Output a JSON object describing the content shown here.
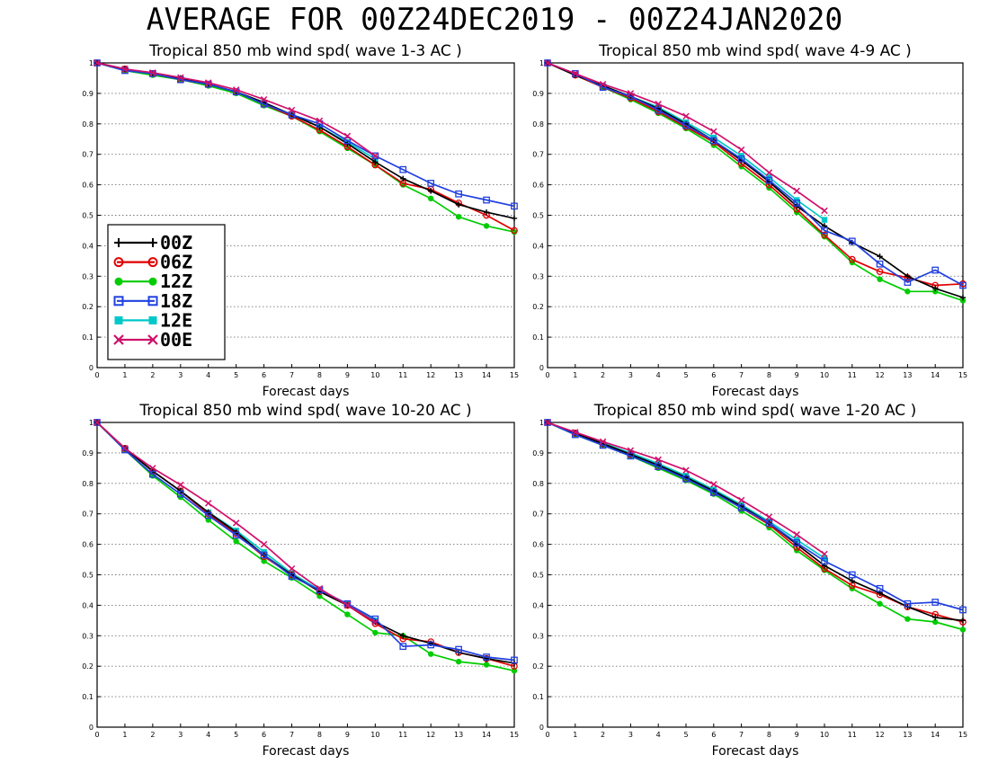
{
  "title": "AVERAGE FOR 00Z24DEC2019 - 00Z24JAN2020",
  "colors": {
    "00Z": "#000000",
    "06Z": "#e00000",
    "12Z": "#00cc00",
    "18Z": "#2040e0",
    "12E": "#00c8c8",
    "00E": "#d0106a"
  },
  "legend": {
    "placement": "left-middle of top-left panel",
    "items": [
      {
        "label": "00Z",
        "marker": "plus"
      },
      {
        "label": "06Z",
        "marker": "circle"
      },
      {
        "label": "12Z",
        "marker": "filled-circle"
      },
      {
        "label": "18Z",
        "marker": "square"
      },
      {
        "label": "12E",
        "marker": "filled-square"
      },
      {
        "label": "00E",
        "marker": "cross"
      }
    ]
  },
  "chart_data": [
    {
      "type": "line",
      "title": "Tropical 850 mb wind spd( wave 1-3 AC )",
      "xlabel": "Forecast days",
      "ylabel": "",
      "xlim": [
        0,
        15
      ],
      "ylim": [
        0,
        1
      ],
      "x_ticks": [
        "0",
        "1",
        "2",
        "3",
        "4",
        "5",
        "6",
        "7",
        "8",
        "9",
        "10",
        "11",
        "12",
        "13",
        "14",
        "15"
      ],
      "y_ticks": [
        "0",
        "0.1",
        "0.2",
        "0.3",
        "0.4",
        "0.5",
        "0.6",
        "0.7",
        "0.8",
        "0.9",
        "1"
      ],
      "grid": true,
      "series": [
        {
          "name": "00Z",
          "x": [
            0,
            1,
            2,
            3,
            4,
            5,
            6,
            7,
            8,
            9,
            10,
            11,
            12,
            13,
            14,
            15
          ],
          "values": [
            1,
            0.98,
            0.965,
            0.95,
            0.93,
            0.905,
            0.87,
            0.83,
            0.79,
            0.735,
            0.675,
            0.62,
            0.58,
            0.535,
            0.51,
            0.49
          ]
        },
        {
          "name": "06Z",
          "x": [
            0,
            1,
            2,
            3,
            4,
            5,
            6,
            7,
            8,
            9,
            10,
            11,
            12,
            13,
            14,
            15
          ],
          "values": [
            1,
            0.98,
            0.965,
            0.945,
            0.93,
            0.905,
            0.865,
            0.825,
            0.78,
            0.725,
            0.665,
            0.605,
            0.585,
            0.54,
            0.5,
            0.45
          ]
        },
        {
          "name": "12Z",
          "x": [
            0,
            1,
            2,
            3,
            4,
            5,
            6,
            7,
            8,
            9,
            10,
            11,
            12,
            13,
            14,
            15
          ],
          "values": [
            1,
            0.975,
            0.96,
            0.945,
            0.925,
            0.9,
            0.86,
            0.825,
            0.775,
            0.72,
            0.665,
            0.6,
            0.555,
            0.495,
            0.465,
            0.445
          ]
        },
        {
          "name": "18Z",
          "x": [
            0,
            1,
            2,
            3,
            4,
            5,
            6,
            7,
            8,
            9,
            10,
            11,
            12,
            13,
            14,
            15
          ],
          "values": [
            1,
            0.975,
            0.965,
            0.945,
            0.93,
            0.905,
            0.865,
            0.83,
            0.8,
            0.745,
            0.695,
            0.65,
            0.605,
            0.57,
            0.55,
            0.53
          ]
        },
        {
          "name": "12E",
          "x": [
            0,
            1,
            2,
            3,
            4,
            5,
            6,
            7,
            8,
            9,
            10
          ],
          "values": [
            1,
            0.978,
            0.965,
            0.948,
            0.93,
            0.905,
            0.87,
            0.83,
            0.79,
            0.74,
            0.685
          ]
        },
        {
          "name": "00E",
          "x": [
            0,
            1,
            2,
            3,
            4,
            5,
            6,
            7,
            8,
            9,
            10
          ],
          "values": [
            1,
            0.98,
            0.968,
            0.952,
            0.935,
            0.912,
            0.88,
            0.845,
            0.81,
            0.76,
            0.695
          ]
        }
      ]
    },
    {
      "type": "line",
      "title": "Tropical 850 mb wind spd( wave 4-9 AC )",
      "xlabel": "Forecast days",
      "ylabel": "",
      "xlim": [
        0,
        15
      ],
      "ylim": [
        0,
        1
      ],
      "x_ticks": [
        "0",
        "1",
        "2",
        "3",
        "4",
        "5",
        "6",
        "7",
        "8",
        "9",
        "10",
        "11",
        "12",
        "13",
        "14",
        "15"
      ],
      "y_ticks": [
        "0",
        "0.1",
        "0.2",
        "0.3",
        "0.4",
        "0.5",
        "0.6",
        "0.7",
        "0.8",
        "0.9",
        "1"
      ],
      "grid": true,
      "series": [
        {
          "name": "00Z",
          "x": [
            0,
            1,
            2,
            3,
            4,
            5,
            6,
            7,
            8,
            9,
            10,
            11,
            12,
            13,
            14,
            15
          ],
          "values": [
            1,
            0.96,
            0.925,
            0.89,
            0.85,
            0.8,
            0.745,
            0.68,
            0.61,
            0.53,
            0.465,
            0.41,
            0.365,
            0.3,
            0.26,
            0.23
          ]
        },
        {
          "name": "06Z",
          "x": [
            0,
            1,
            2,
            3,
            4,
            5,
            6,
            7,
            8,
            9,
            10,
            11,
            12,
            13,
            14,
            15
          ],
          "values": [
            1,
            0.96,
            0.92,
            0.885,
            0.84,
            0.79,
            0.74,
            0.67,
            0.6,
            0.52,
            0.435,
            0.355,
            0.315,
            0.295,
            0.27,
            0.275
          ]
        },
        {
          "name": "12Z",
          "x": [
            0,
            1,
            2,
            3,
            4,
            5,
            6,
            7,
            8,
            9,
            10,
            11,
            12,
            13,
            14,
            15
          ],
          "values": [
            1,
            0.96,
            0.92,
            0.88,
            0.835,
            0.785,
            0.73,
            0.66,
            0.59,
            0.51,
            0.43,
            0.345,
            0.29,
            0.25,
            0.25,
            0.22
          ]
        },
        {
          "name": "18Z",
          "x": [
            0,
            1,
            2,
            3,
            4,
            5,
            6,
            7,
            8,
            9,
            10,
            11,
            12,
            13,
            14,
            15
          ],
          "values": [
            1,
            0.965,
            0.92,
            0.89,
            0.845,
            0.795,
            0.745,
            0.685,
            0.615,
            0.54,
            0.45,
            0.415,
            0.34,
            0.28,
            0.32,
            0.27
          ]
        },
        {
          "name": "12E",
          "x": [
            0,
            1,
            2,
            3,
            4,
            5,
            6,
            7,
            8,
            9,
            10
          ],
          "values": [
            1,
            0.96,
            0.925,
            0.89,
            0.855,
            0.805,
            0.755,
            0.695,
            0.625,
            0.55,
            0.485
          ]
        },
        {
          "name": "00E",
          "x": [
            0,
            1,
            2,
            3,
            4,
            5,
            6,
            7,
            8,
            9,
            10
          ],
          "values": [
            1,
            0.965,
            0.93,
            0.9,
            0.865,
            0.825,
            0.775,
            0.715,
            0.64,
            0.58,
            0.515
          ]
        }
      ]
    },
    {
      "type": "line",
      "title": "Tropical 850 mb wind spd( wave 10-20 AC )",
      "xlabel": "Forecast days",
      "ylabel": "",
      "xlim": [
        0,
        15
      ],
      "ylim": [
        0,
        1
      ],
      "x_ticks": [
        "0",
        "1",
        "2",
        "3",
        "4",
        "5",
        "6",
        "7",
        "8",
        "9",
        "10",
        "11",
        "12",
        "13",
        "14",
        "15"
      ],
      "y_ticks": [
        "0",
        "0.1",
        "0.2",
        "0.3",
        "0.4",
        "0.5",
        "0.6",
        "0.7",
        "0.8",
        "0.9",
        "1"
      ],
      "grid": true,
      "series": [
        {
          "name": "00Z",
          "x": [
            0,
            1,
            2,
            3,
            4,
            5,
            6,
            7,
            8,
            9,
            10,
            11,
            12,
            13,
            14,
            15
          ],
          "values": [
            1,
            0.915,
            0.84,
            0.775,
            0.705,
            0.64,
            0.565,
            0.5,
            0.445,
            0.4,
            0.345,
            0.3,
            0.275,
            0.245,
            0.225,
            0.21
          ]
        },
        {
          "name": "06Z",
          "x": [
            0,
            1,
            2,
            3,
            4,
            5,
            6,
            7,
            8,
            9,
            10,
            11,
            12,
            13,
            14,
            15
          ],
          "values": [
            1,
            0.915,
            0.84,
            0.775,
            0.7,
            0.635,
            0.56,
            0.5,
            0.445,
            0.4,
            0.34,
            0.29,
            0.28,
            0.245,
            0.225,
            0.2
          ]
        },
        {
          "name": "12Z",
          "x": [
            0,
            1,
            2,
            3,
            4,
            5,
            6,
            7,
            8,
            9,
            10,
            11,
            12,
            13,
            14,
            15
          ],
          "values": [
            1,
            0.91,
            0.825,
            0.755,
            0.68,
            0.61,
            0.545,
            0.49,
            0.43,
            0.37,
            0.31,
            0.3,
            0.24,
            0.215,
            0.205,
            0.185
          ]
        },
        {
          "name": "18Z",
          "x": [
            0,
            1,
            2,
            3,
            4,
            5,
            6,
            7,
            8,
            9,
            10,
            11,
            12,
            13,
            14,
            15
          ],
          "values": [
            1,
            0.91,
            0.83,
            0.765,
            0.695,
            0.63,
            0.565,
            0.495,
            0.45,
            0.405,
            0.355,
            0.265,
            0.27,
            0.255,
            0.23,
            0.22
          ]
        },
        {
          "name": "12E",
          "x": [
            0,
            1,
            2,
            3,
            4,
            5,
            6,
            7,
            8,
            9,
            10
          ],
          "values": [
            1,
            0.915,
            0.84,
            0.775,
            0.705,
            0.645,
            0.575,
            0.505,
            0.45,
            0.405,
            0.35
          ]
        },
        {
          "name": "00E",
          "x": [
            0,
            1,
            2,
            3,
            4,
            5,
            6,
            7,
            8,
            9,
            10
          ],
          "values": [
            1,
            0.915,
            0.85,
            0.795,
            0.735,
            0.67,
            0.6,
            0.52,
            0.455,
            0.4,
            0.345
          ]
        }
      ]
    },
    {
      "type": "line",
      "title": "Tropical 850 mb wind spd( wave 1-20 AC )",
      "xlabel": "Forecast days",
      "ylabel": "",
      "xlim": [
        0,
        15
      ],
      "ylim": [
        0,
        1
      ],
      "x_ticks": [
        "0",
        "1",
        "2",
        "3",
        "4",
        "5",
        "6",
        "7",
        "8",
        "9",
        "10",
        "11",
        "12",
        "13",
        "14",
        "15"
      ],
      "y_ticks": [
        "0",
        "0.1",
        "0.2",
        "0.3",
        "0.4",
        "0.5",
        "0.6",
        "0.7",
        "0.8",
        "0.9",
        "1"
      ],
      "grid": true,
      "series": [
        {
          "name": "00Z",
          "x": [
            0,
            1,
            2,
            3,
            4,
            5,
            6,
            7,
            8,
            9,
            10,
            11,
            12,
            13,
            14,
            15
          ],
          "values": [
            1,
            0.965,
            0.93,
            0.895,
            0.86,
            0.82,
            0.775,
            0.725,
            0.67,
            0.6,
            0.53,
            0.48,
            0.44,
            0.395,
            0.36,
            0.35
          ]
        },
        {
          "name": "06Z",
          "x": [
            0,
            1,
            2,
            3,
            4,
            5,
            6,
            7,
            8,
            9,
            10,
            11,
            12,
            13,
            14,
            15
          ],
          "values": [
            1,
            0.965,
            0.93,
            0.895,
            0.855,
            0.815,
            0.77,
            0.72,
            0.665,
            0.59,
            0.52,
            0.465,
            0.435,
            0.395,
            0.37,
            0.345
          ]
        },
        {
          "name": "12Z",
          "x": [
            0,
            1,
            2,
            3,
            4,
            5,
            6,
            7,
            8,
            9,
            10,
            11,
            12,
            13,
            14,
            15
          ],
          "values": [
            1,
            0.96,
            0.925,
            0.89,
            0.85,
            0.81,
            0.765,
            0.71,
            0.655,
            0.58,
            0.515,
            0.455,
            0.405,
            0.355,
            0.345,
            0.32
          ]
        },
        {
          "name": "18Z",
          "x": [
            0,
            1,
            2,
            3,
            4,
            5,
            6,
            7,
            8,
            9,
            10,
            11,
            12,
            13,
            14,
            15
          ],
          "values": [
            1,
            0.96,
            0.925,
            0.89,
            0.855,
            0.815,
            0.77,
            0.72,
            0.67,
            0.605,
            0.545,
            0.5,
            0.455,
            0.405,
            0.41,
            0.385
          ]
        },
        {
          "name": "12E",
          "x": [
            0,
            1,
            2,
            3,
            4,
            5,
            6,
            7,
            8,
            9,
            10
          ],
          "values": [
            1,
            0.965,
            0.932,
            0.9,
            0.865,
            0.825,
            0.78,
            0.73,
            0.675,
            0.615,
            0.555
          ]
        },
        {
          "name": "00E",
          "x": [
            0,
            1,
            2,
            3,
            4,
            5,
            6,
            7,
            8,
            9,
            10
          ],
          "values": [
            1,
            0.968,
            0.937,
            0.908,
            0.878,
            0.843,
            0.797,
            0.745,
            0.69,
            0.632,
            0.568
          ]
        }
      ]
    }
  ]
}
